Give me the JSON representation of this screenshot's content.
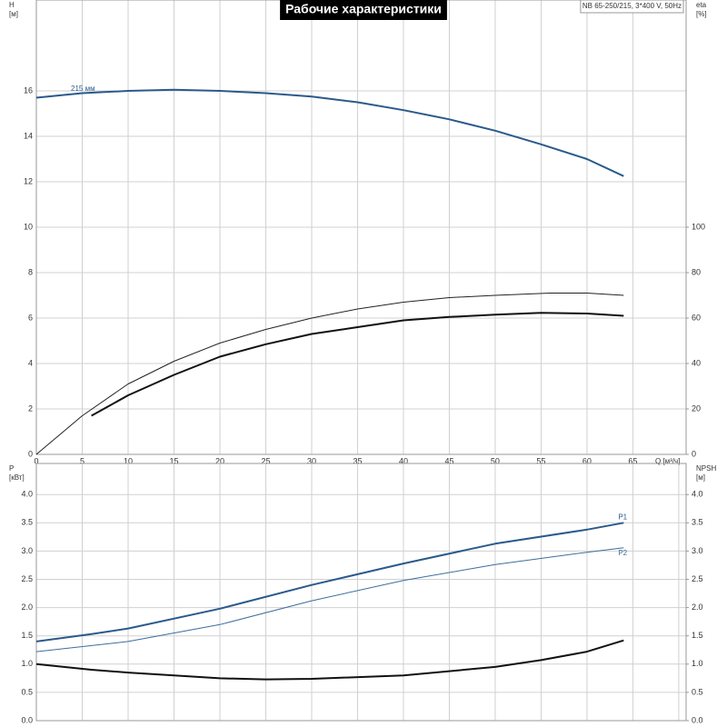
{
  "chart_data": [
    {
      "type": "line",
      "title": "Рабочие характеристики",
      "subtitle": "NB 65-250/215, 3*400 V, 50Hz",
      "y_label": [
        "H",
        "[м]"
      ],
      "y2_label": [
        "eta",
        "[%]"
      ],
      "x_label": "Q [м³/ч]",
      "xlim": [
        0,
        70.8
      ],
      "xticks": [
        0,
        5,
        10,
        15,
        20,
        25,
        30,
        35,
        40,
        45,
        50,
        55,
        60,
        65
      ],
      "ylim": [
        0,
        20
      ],
      "yticks": [
        0,
        2,
        4,
        6,
        8,
        10,
        12,
        14,
        16
      ],
      "y2lim": [
        0,
        200
      ],
      "y2ticks": [
        0,
        20,
        40,
        60,
        80,
        100
      ],
      "grid": true,
      "series": [
        {
          "name": "215 мм",
          "label_position": "start",
          "color": "#2a5a8c",
          "width": 2,
          "x": [
            0,
            5,
            10,
            15,
            20,
            25,
            30,
            35,
            40,
            45,
            50,
            55,
            60,
            64
          ],
          "values": [
            15.7,
            15.9,
            16.0,
            16.05,
            16.0,
            15.9,
            15.75,
            15.5,
            15.15,
            14.75,
            14.25,
            13.65,
            13.0,
            12.25
          ]
        },
        {
          "color": "#222222",
          "width": 1,
          "axis": "y2",
          "x": [
            0,
            5,
            10,
            15,
            20,
            25,
            30,
            35,
            40,
            45,
            50,
            56,
            60,
            64
          ],
          "values": [
            0,
            17,
            31,
            41,
            49,
            55,
            60,
            64,
            67,
            69,
            70,
            71,
            71,
            70
          ]
        },
        {
          "color": "#111111",
          "width": 2,
          "axis": "y2",
          "x": [
            6,
            10,
            15,
            20,
            25,
            30,
            35,
            40,
            45,
            50,
            55,
            60,
            64
          ],
          "values": [
            17,
            26,
            35,
            43,
            48.5,
            53,
            56,
            59,
            60.5,
            61.5,
            62.3,
            62,
            61
          ]
        }
      ]
    },
    {
      "type": "line",
      "y_label": [
        "P",
        "[кВт]"
      ],
      "y2_label": [
        "NPSH",
        "[м]"
      ],
      "xlim": [
        0,
        70.8
      ],
      "xgrid": [
        0,
        5,
        10,
        15,
        20,
        25,
        30,
        35,
        40,
        45,
        50,
        55,
        60,
        65,
        70
      ],
      "ylim": [
        0,
        4.55
      ],
      "yticks": [
        {
          "value": 0,
          "label": "0.0"
        },
        0.5,
        {
          "value": 1,
          "label": "1.0"
        },
        1.5,
        {
          "value": 2,
          "label": "2.0"
        },
        2.5,
        {
          "value": 3,
          "label": "3.0"
        },
        3.5,
        {
          "value": 4,
          "label": "4.0"
        }
      ],
      "y2lim": [
        0,
        4.55
      ],
      "y2ticks": [
        {
          "value": 0,
          "label": "0.0"
        },
        0.5,
        {
          "value": 1,
          "label": "1.0"
        },
        1.5,
        {
          "value": 2,
          "label": "2.0"
        },
        2.5,
        {
          "value": 3,
          "label": "3.0"
        },
        3.5,
        {
          "value": 4,
          "label": "4.0"
        }
      ],
      "grid": true,
      "series": [
        {
          "name": "P1",
          "label_position": "end",
          "color": "#2a5a8c",
          "width": 2,
          "x": [
            0,
            6,
            10,
            20,
            30,
            40,
            50,
            60,
            64
          ],
          "values": [
            1.4,
            1.53,
            1.63,
            1.98,
            2.4,
            2.78,
            3.13,
            3.38,
            3.5
          ]
        },
        {
          "name": "P2",
          "label_position": "end",
          "color": "#3d6d9d",
          "width": 1,
          "x": [
            0,
            10,
            20,
            30,
            40,
            50,
            60,
            64
          ],
          "values": [
            1.22,
            1.4,
            1.7,
            2.12,
            2.48,
            2.76,
            2.98,
            3.06
          ]
        },
        {
          "color": "#111111",
          "width": 2,
          "axis": "y2",
          "x": [
            0,
            6,
            10,
            20,
            25,
            30,
            40,
            50,
            55,
            60,
            64
          ],
          "values": [
            1.0,
            0.9,
            0.85,
            0.75,
            0.73,
            0.74,
            0.8,
            0.95,
            1.07,
            1.22,
            1.42
          ]
        }
      ]
    }
  ]
}
